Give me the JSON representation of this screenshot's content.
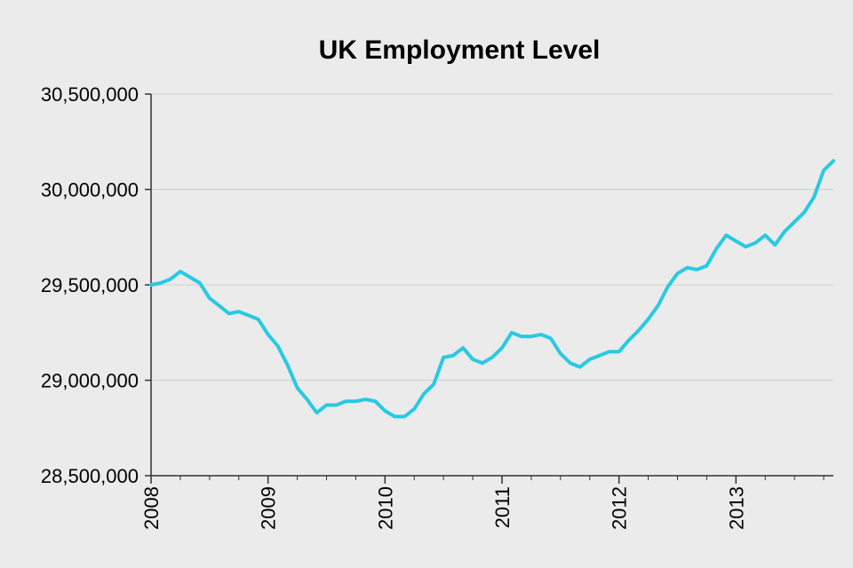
{
  "chart_data": {
    "type": "line",
    "title": "UK Employment Level",
    "xlabel": "",
    "ylabel": "",
    "ylim": [
      28500000,
      30500000
    ],
    "xlim": [
      "2008-01",
      "2013-10"
    ],
    "grid": "horizontal",
    "colors": {
      "line": "#29c9e3",
      "background": "#ebebeb",
      "grid": "#d0d0d0",
      "axis": "#333333"
    },
    "yticks": [
      {
        "value": 30500000,
        "label": "30,500,000"
      },
      {
        "value": 30000000,
        "label": "30,000,000"
      },
      {
        "value": 29500000,
        "label": "29,500,000"
      },
      {
        "value": 29000000,
        "label": "29,000,000"
      },
      {
        "value": 28500000,
        "label": "28,500,000"
      }
    ],
    "xticks": [
      {
        "value": "2008-01",
        "label": "2008"
      },
      {
        "value": "2009-01",
        "label": "2009"
      },
      {
        "value": "2010-01",
        "label": "2010"
      },
      {
        "value": "2011-01",
        "label": "2011"
      },
      {
        "value": "2012-01",
        "label": "2012"
      },
      {
        "value": "2013-01",
        "label": "2013"
      }
    ],
    "series": [
      {
        "points": [
          [
            "2008-01",
            29500000
          ],
          [
            "2008-02",
            29510000
          ],
          [
            "2008-03",
            29530000
          ],
          [
            "2008-04",
            29570000
          ],
          [
            "2008-05",
            29540000
          ],
          [
            "2008-06",
            29510000
          ],
          [
            "2008-07",
            29430000
          ],
          [
            "2008-08",
            29390000
          ],
          [
            "2008-09",
            29350000
          ],
          [
            "2008-10",
            29360000
          ],
          [
            "2008-11",
            29340000
          ],
          [
            "2008-12",
            29320000
          ],
          [
            "2009-01",
            29240000
          ],
          [
            "2009-02",
            29180000
          ],
          [
            "2009-03",
            29080000
          ],
          [
            "2009-04",
            28960000
          ],
          [
            "2009-05",
            28900000
          ],
          [
            "2009-06",
            28830000
          ],
          [
            "2009-07",
            28870000
          ],
          [
            "2009-08",
            28870000
          ],
          [
            "2009-09",
            28890000
          ],
          [
            "2009-10",
            28890000
          ],
          [
            "2009-11",
            28900000
          ],
          [
            "2009-12",
            28890000
          ],
          [
            "2010-01",
            28840000
          ],
          [
            "2010-02",
            28810000
          ],
          [
            "2010-03",
            28810000
          ],
          [
            "2010-04",
            28850000
          ],
          [
            "2010-05",
            28930000
          ],
          [
            "2010-06",
            28980000
          ],
          [
            "2010-07",
            29120000
          ],
          [
            "2010-08",
            29130000
          ],
          [
            "2010-09",
            29170000
          ],
          [
            "2010-10",
            29110000
          ],
          [
            "2010-11",
            29090000
          ],
          [
            "2010-12",
            29120000
          ],
          [
            "2011-01",
            29170000
          ],
          [
            "2011-02",
            29250000
          ],
          [
            "2011-03",
            29230000
          ],
          [
            "2011-04",
            29230000
          ],
          [
            "2011-05",
            29240000
          ],
          [
            "2011-06",
            29220000
          ],
          [
            "2011-07",
            29140000
          ],
          [
            "2011-08",
            29090000
          ],
          [
            "2011-09",
            29070000
          ],
          [
            "2011-10",
            29110000
          ],
          [
            "2011-11",
            29130000
          ],
          [
            "2011-12",
            29150000
          ],
          [
            "2012-01",
            29150000
          ],
          [
            "2012-02",
            29210000
          ],
          [
            "2012-03",
            29260000
          ],
          [
            "2012-04",
            29320000
          ],
          [
            "2012-05",
            29390000
          ],
          [
            "2012-06",
            29490000
          ],
          [
            "2012-07",
            29560000
          ],
          [
            "2012-08",
            29590000
          ],
          [
            "2012-09",
            29580000
          ],
          [
            "2012-10",
            29600000
          ],
          [
            "2012-11",
            29690000
          ],
          [
            "2012-12",
            29760000
          ],
          [
            "2013-01",
            29730000
          ],
          [
            "2013-02",
            29700000
          ],
          [
            "2013-03",
            29720000
          ],
          [
            "2013-04",
            29760000
          ],
          [
            "2013-05",
            29710000
          ],
          [
            "2013-06",
            29780000
          ],
          [
            "2013-07",
            29830000
          ],
          [
            "2013-08",
            29880000
          ],
          [
            "2013-09",
            29960000
          ],
          [
            "2013-10",
            30100000
          ],
          [
            "2013-11",
            30150000
          ]
        ]
      }
    ]
  }
}
